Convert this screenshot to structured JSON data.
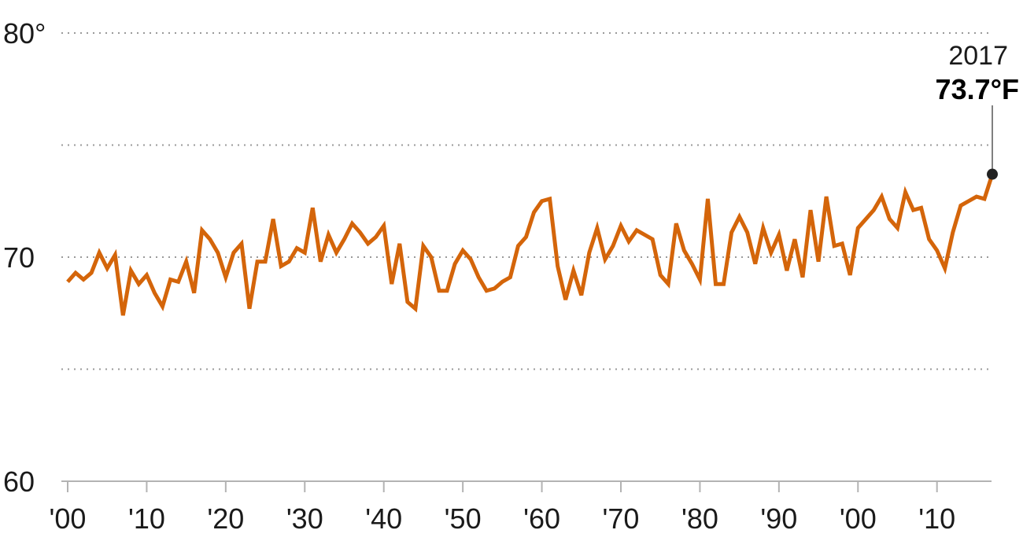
{
  "chart_data": {
    "type": "line",
    "y_ticks": [
      {
        "value": 80,
        "label": "80°"
      },
      {
        "value": 75,
        "label": ""
      },
      {
        "value": 70,
        "label": "70"
      },
      {
        "value": 65,
        "label": ""
      },
      {
        "value": 60,
        "label": "60"
      }
    ],
    "x_ticks": [
      {
        "value": 1900,
        "label": "'00"
      },
      {
        "value": 1910,
        "label": "'10"
      },
      {
        "value": 1920,
        "label": "'20"
      },
      {
        "value": 1930,
        "label": "'30"
      },
      {
        "value": 1940,
        "label": "'40"
      },
      {
        "value": 1950,
        "label": "'50"
      },
      {
        "value": 1960,
        "label": "'60"
      },
      {
        "value": 1970,
        "label": "'70"
      },
      {
        "value": 1980,
        "label": "'80"
      },
      {
        "value": 1990,
        "label": "'90"
      },
      {
        "value": 2000,
        "label": "'00"
      },
      {
        "value": 2010,
        "label": "'10"
      }
    ],
    "xlim": [
      1900,
      2017
    ],
    "ylim": [
      60,
      80
    ],
    "grid": true,
    "series_color": "#D4650A",
    "series": [
      {
        "x": [
          1900,
          1901,
          1902,
          1903,
          1904,
          1905,
          1906,
          1907,
          1908,
          1909,
          1910,
          1911,
          1912,
          1913,
          1914,
          1915,
          1916,
          1917,
          1918,
          1919,
          1920,
          1921,
          1922,
          1923,
          1924,
          1925,
          1926,
          1927,
          1928,
          1929,
          1930,
          1931,
          1932,
          1933,
          1934,
          1935,
          1936,
          1937,
          1938,
          1939,
          1940,
          1941,
          1942,
          1943,
          1944,
          1945,
          1946,
          1947,
          1948,
          1949,
          1950,
          1951,
          1952,
          1953,
          1954,
          1955,
          1956,
          1957,
          1958,
          1959,
          1960,
          1961,
          1962,
          1963,
          1964,
          1965,
          1966,
          1967,
          1968,
          1969,
          1970,
          1971,
          1972,
          1973,
          1974,
          1975,
          1976,
          1977,
          1978,
          1979,
          1980,
          1981,
          1982,
          1983,
          1984,
          1985,
          1986,
          1987,
          1988,
          1989,
          1990,
          1991,
          1992,
          1993,
          1994,
          1995,
          1996,
          1997,
          1998,
          1999,
          2000,
          2001,
          2002,
          2003,
          2004,
          2005,
          2006,
          2007,
          2008,
          2009,
          2010,
          2011,
          2012,
          2013,
          2014,
          2015,
          2016,
          2017
        ],
        "values": [
          68.9,
          69.3,
          69.0,
          69.3,
          70.2,
          69.5,
          70.1,
          67.4,
          69.4,
          68.8,
          69.2,
          68.4,
          67.8,
          69.0,
          68.9,
          69.8,
          68.4,
          71.2,
          70.8,
          70.2,
          69.1,
          70.2,
          70.6,
          67.7,
          69.8,
          69.8,
          71.7,
          69.6,
          69.8,
          70.4,
          70.2,
          72.2,
          69.8,
          71.0,
          70.2,
          70.8,
          71.5,
          71.1,
          70.6,
          70.9,
          71.4,
          68.8,
          70.6,
          68.0,
          67.7,
          70.5,
          70.0,
          68.5,
          68.5,
          69.7,
          70.3,
          69.9,
          69.1,
          68.5,
          68.6,
          68.9,
          69.1,
          70.5,
          70.9,
          72.0,
          72.5,
          72.6,
          69.6,
          68.1,
          69.4,
          68.3,
          70.2,
          71.3,
          69.9,
          70.5,
          71.4,
          70.7,
          71.2,
          71.0,
          70.8,
          69.2,
          68.8,
          71.5,
          70.3,
          69.7,
          69.0,
          72.6,
          68.8,
          68.8,
          71.1,
          71.8,
          71.1,
          69.7,
          71.3,
          70.2,
          71.0,
          69.4,
          70.8,
          69.1,
          72.1,
          69.8,
          72.7,
          70.5,
          70.6,
          69.2,
          71.3,
          71.7,
          72.1,
          72.7,
          71.7,
          71.3,
          72.9,
          72.1,
          72.2,
          70.8,
          70.3,
          69.5,
          71.1,
          72.3,
          72.5,
          72.7,
          72.6,
          73.7
        ]
      }
    ],
    "annotation": {
      "year_label": "2017",
      "value_label": "73.7°F",
      "x": 2017,
      "y": 73.7
    }
  }
}
